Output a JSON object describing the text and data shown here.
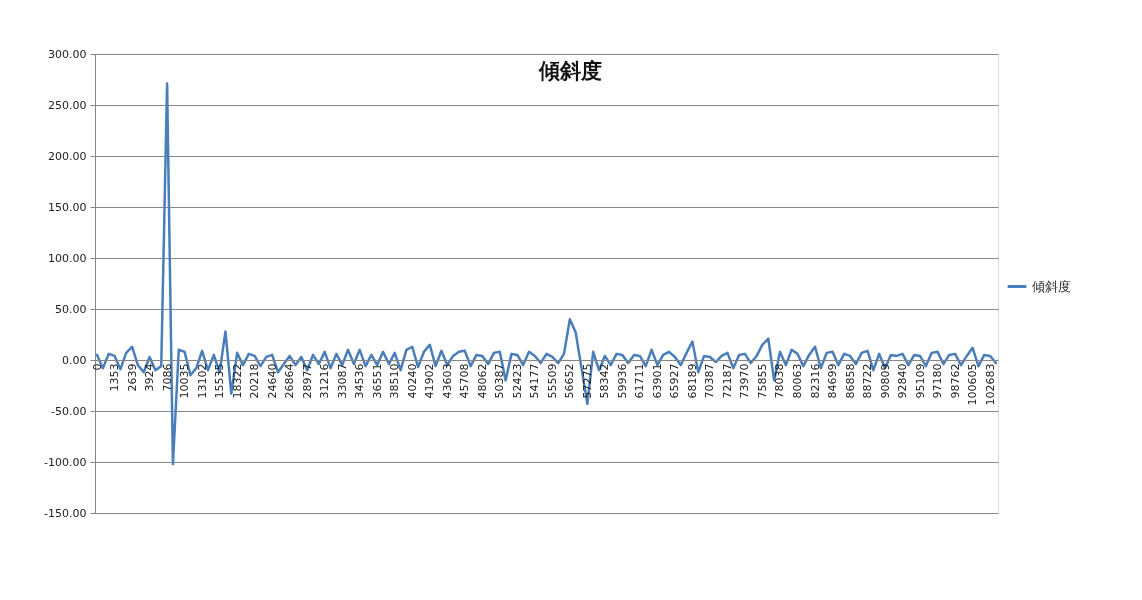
{
  "chart_data": {
    "type": "line",
    "title": "傾斜度",
    "categories": [
      "0",
      null,
      null,
      "1353",
      null,
      null,
      "2639",
      null,
      null,
      "3924",
      null,
      null,
      "7086",
      null,
      null,
      "10035",
      null,
      null,
      "13102",
      null,
      null,
      "15535",
      null,
      null,
      "18322",
      null,
      null,
      "20218",
      null,
      null,
      "24640",
      null,
      null,
      "26864",
      null,
      null,
      "28977",
      null,
      null,
      "31216",
      null,
      null,
      "33087",
      null,
      null,
      "34536",
      null,
      null,
      "36551",
      null,
      null,
      "38510",
      null,
      null,
      "40240",
      null,
      null,
      "41902",
      null,
      null,
      "43603",
      null,
      null,
      "45708",
      null,
      null,
      "48062",
      null,
      null,
      "50387",
      null,
      null,
      "52423",
      null,
      null,
      "54177",
      null,
      null,
      "55509",
      null,
      null,
      "56652",
      null,
      null,
      "57275",
      null,
      null,
      "58342",
      null,
      null,
      "59936",
      null,
      null,
      "61711",
      null,
      null,
      "63901",
      null,
      null,
      "65927",
      null,
      null,
      "68189",
      null,
      null,
      "70387",
      null,
      null,
      "72187",
      null,
      null,
      "73970",
      null,
      null,
      "75855",
      null,
      null,
      "78038",
      null,
      null,
      "80063",
      null,
      null,
      "82316",
      null,
      null,
      "84699",
      null,
      null,
      "86858",
      null,
      null,
      "88722",
      null,
      null,
      "90809",
      null,
      null,
      "92840",
      null,
      null,
      "95109",
      null,
      null,
      "97180",
      null,
      null,
      "98762",
      null,
      null,
      "100605",
      null,
      null,
      "102683",
      null
    ],
    "series": [
      {
        "name": "傾斜度",
        "color": "#4a7ebb",
        "values": [
          5,
          -8,
          6,
          4,
          -9,
          7,
          13,
          -5,
          -12,
          3,
          -10,
          -6,
          271,
          -102,
          10,
          8,
          -15,
          -8,
          9,
          -10,
          5,
          -12,
          28,
          -33,
          7,
          -5,
          6,
          4,
          -6,
          3,
          5,
          -12,
          -4,
          4,
          -5,
          3,
          -10,
          5,
          -4,
          8,
          -8,
          6,
          -5,
          10,
          -4,
          10,
          -6,
          5,
          -5,
          8,
          -4,
          7,
          -10,
          10,
          13,
          -7,
          8,
          15,
          -6,
          9,
          -5,
          4,
          8,
          9,
          -6,
          5,
          4,
          -4,
          7,
          8,
          -20,
          6,
          5,
          -5,
          8,
          4,
          -3,
          6,
          3,
          -3,
          6,
          40,
          27,
          -8,
          -43,
          8,
          -10,
          4,
          -5,
          6,
          5,
          -3,
          5,
          4,
          -6,
          10,
          -5,
          5,
          8,
          3,
          -5,
          7,
          18,
          -12,
          4,
          3,
          -2,
          4,
          7,
          -8,
          5,
          6,
          -3,
          4,
          15,
          21,
          -20,
          8,
          -5,
          10,
          6,
          -6,
          5,
          13,
          -8,
          7,
          8,
          -5,
          6,
          4,
          -4,
          7,
          9,
          -10,
          6,
          -8,
          5,
          4,
          6,
          -5,
          5,
          4,
          -6,
          7,
          8,
          -4,
          5,
          6,
          -5,
          4,
          12,
          -6,
          5,
          4,
          -3
        ]
      }
    ],
    "ylim": [
      -150,
      300
    ],
    "yticks": [
      {
        "value": -150,
        "label": "-150.00"
      },
      {
        "value": -100,
        "label": "-100.00"
      },
      {
        "value": -50,
        "label": "-50.00"
      },
      {
        "value": 0,
        "label": "0.00"
      },
      {
        "value": 50,
        "label": "50.00"
      },
      {
        "value": 100,
        "label": "100.00"
      },
      {
        "value": 150,
        "label": "150.00"
      },
      {
        "value": 200,
        "label": "200.00"
      },
      {
        "value": 250,
        "label": "250.00"
      },
      {
        "value": 300,
        "label": "300.00"
      }
    ],
    "grid": "y",
    "legend": "right",
    "marker": "none",
    "line_style": "solid"
  }
}
